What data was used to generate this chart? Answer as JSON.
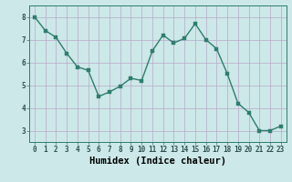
{
  "x": [
    0,
    1,
    2,
    3,
    4,
    5,
    6,
    7,
    8,
    9,
    10,
    11,
    12,
    13,
    14,
    15,
    16,
    17,
    18,
    19,
    20,
    21,
    22,
    23
  ],
  "y": [
    8.0,
    7.4,
    7.1,
    6.4,
    5.8,
    5.65,
    4.5,
    4.7,
    4.95,
    5.3,
    5.2,
    6.5,
    7.2,
    6.85,
    7.05,
    7.7,
    7.0,
    6.6,
    5.5,
    4.2,
    3.8,
    3.0,
    3.0,
    3.2
  ],
  "line_color": "#2e7d6e",
  "marker_color": "#2e7d6e",
  "bg_color": "#cce8e8",
  "grid_color": "#b8a8c8",
  "xlabel": "Humidex (Indice chaleur)",
  "xlim": [
    -0.5,
    23.5
  ],
  "ylim": [
    2.5,
    8.5
  ],
  "yticks": [
    3,
    4,
    5,
    6,
    7,
    8
  ],
  "xticks": [
    0,
    1,
    2,
    3,
    4,
    5,
    6,
    7,
    8,
    9,
    10,
    11,
    12,
    13,
    14,
    15,
    16,
    17,
    18,
    19,
    20,
    21,
    22,
    23
  ],
  "tick_fontsize": 5.5,
  "xlabel_fontsize": 7.5,
  "line_width": 1.0,
  "marker_size": 2.5
}
